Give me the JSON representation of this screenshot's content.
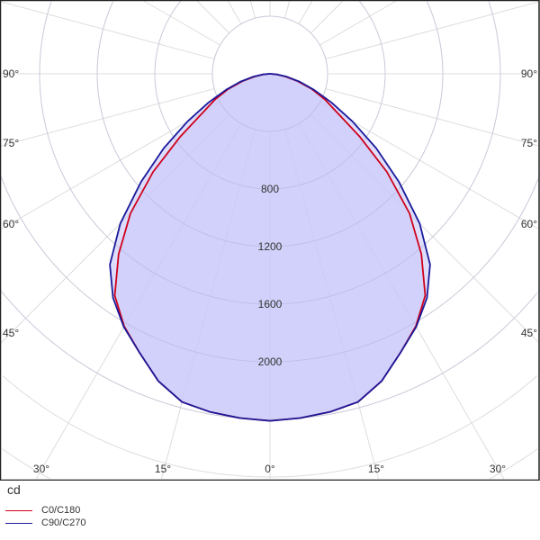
{
  "chart_data": {
    "type": "polar-line",
    "unit": "cd",
    "angle_labels": {
      "left": [
        "90°",
        "75°",
        "60°",
        "45°"
      ],
      "bottom": [
        "30°",
        "15°",
        "0°",
        "15°",
        "30°"
      ],
      "right": [
        "90°",
        "75°",
        "60°",
        "45°"
      ]
    },
    "radial_tick_labels": [
      "800",
      "1200",
      "1600",
      "2000"
    ],
    "radial_step": 400,
    "angle_step": 15,
    "grid": true,
    "legend_placement": "bottom-left",
    "angles_deg": [
      0,
      5,
      10,
      15,
      20,
      25,
      30,
      35,
      40,
      45,
      50,
      55,
      60,
      65,
      70,
      75,
      80,
      85,
      90
    ],
    "series": [
      {
        "name": "C0/C180",
        "color": "#d0001a",
        "values": [
          2410,
          2400,
          2385,
          2360,
          2270,
          2140,
          2025,
          1880,
          1635,
          1370,
          1060,
          760,
          540,
          420,
          310,
          200,
          110,
          45,
          0
        ]
      },
      {
        "name": "C90/C270",
        "color": "#1a1a9c",
        "values": [
          2410,
          2400,
          2385,
          2360,
          2270,
          2140,
          2030,
          1900,
          1730,
          1470,
          1170,
          900,
          660,
          470,
          325,
          215,
          120,
          50,
          0
        ]
      }
    ],
    "fill_color": "#c8c8fa"
  }
}
